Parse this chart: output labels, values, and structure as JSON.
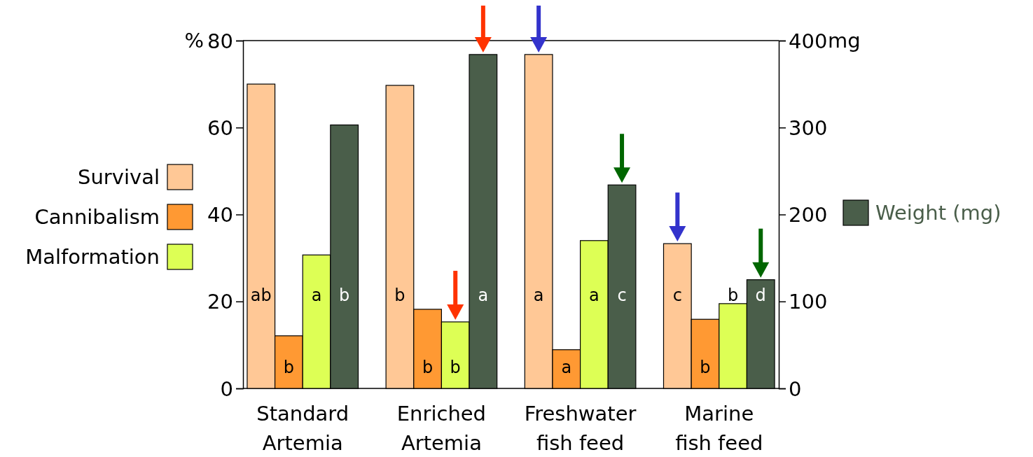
{
  "chart_data": {
    "type": "bar",
    "ylabel": "%",
    "y2label": "mg",
    "categories": [
      "Standard Artemia",
      "Enriched Artemia",
      "Freshwater fish feed",
      "Marine fish feed"
    ],
    "ylim": [
      0,
      80
    ],
    "yticks": [
      0,
      20,
      40,
      60,
      80
    ],
    "y2lim": [
      0,
      400
    ],
    "y2ticks": [
      0,
      100,
      200,
      300,
      400
    ],
    "legend": "left",
    "grid": false,
    "series": [
      {
        "name": "Survival",
        "color": "#ffc896",
        "values": [
          70,
          69.7,
          76.8,
          33.3
        ],
        "value_labels": [
          "ab",
          "b",
          "a",
          "c"
        ]
      },
      {
        "name": "Cannibalism",
        "color": "#ff9933",
        "values": [
          12.1,
          18.2,
          8.9,
          15.9
        ],
        "value_labels": [
          "b",
          "b",
          "a",
          "b"
        ]
      },
      {
        "name": "Malformation",
        "color": "#ddff55",
        "values": [
          30.7,
          15.3,
          34,
          19.5
        ],
        "value_labels": [
          "a",
          "b",
          "a",
          "b"
        ]
      },
      {
        "name": "Weight (mg)",
        "color": "#4a5e4a",
        "axis": "y2",
        "values": [
          303,
          384,
          234,
          125
        ],
        "value_labels": [
          "b",
          "a",
          "c",
          "d"
        ]
      }
    ]
  }
}
